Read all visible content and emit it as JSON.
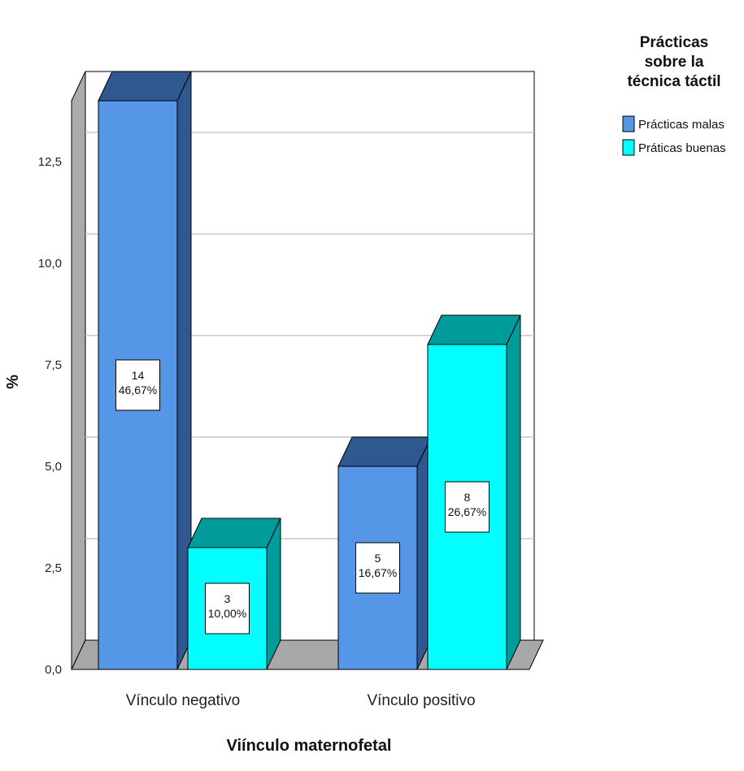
{
  "chart_data": {
    "type": "bar",
    "xlabel": "Viínculo maternofetal",
    "ylabel": "%",
    "ylim": [
      0,
      14
    ],
    "yticks": [
      "0,0",
      "2,5",
      "5,0",
      "7,5",
      "10,0",
      "12,5"
    ],
    "categories": [
      "Vínculo negativo",
      "Vínculo positivo"
    ],
    "legend": {
      "title": [
        "Prácticas",
        "sobre la",
        "técnica táctil"
      ],
      "placement": "top-right"
    },
    "series": [
      {
        "name": "Prácticas malas",
        "color": "#5596e6",
        "top_color": "#305890",
        "side_color": "#305890",
        "values": [
          14,
          5
        ],
        "labels": [
          [
            "14",
            "46,67%"
          ],
          [
            "5",
            "16,67%"
          ]
        ]
      },
      {
        "name": "Práticas buenas",
        "color": "#00ffff",
        "top_color": "#009b9b",
        "side_color": "#009b9b",
        "values": [
          3,
          8
        ],
        "labels": [
          [
            "3",
            "10,00%"
          ],
          [
            "8",
            "26,67%"
          ]
        ]
      }
    ],
    "grid": true
  }
}
